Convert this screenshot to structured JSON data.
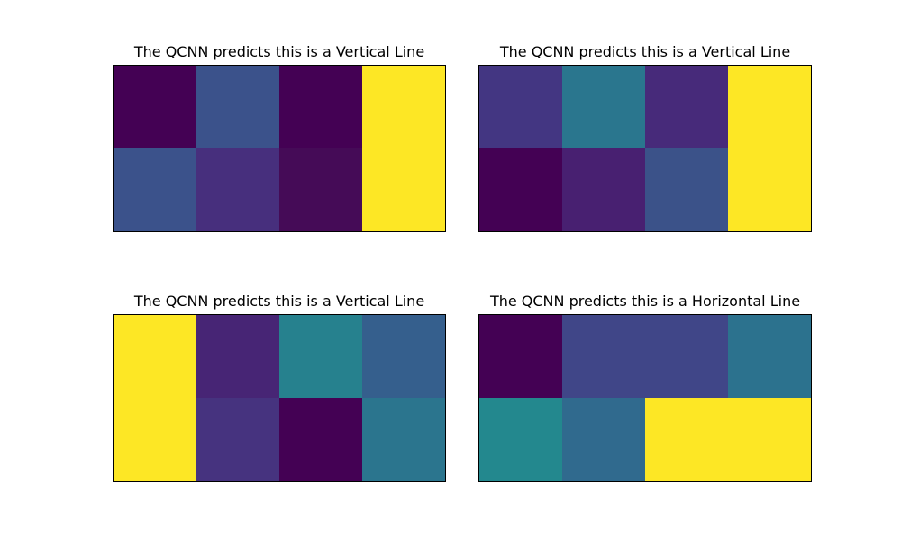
{
  "figure": {
    "colormap": "viridis",
    "background": "#ffffff"
  },
  "chart_data": [
    {
      "type": "heatmap",
      "title": "The QCNN predicts this is a Vertical Line",
      "rows": 2,
      "cols": 4,
      "colors": [
        [
          "#440154",
          "#3b528b",
          "#440154",
          "#fde725"
        ],
        [
          "#3b528b",
          "#472f7d",
          "#450b57",
          "#fde725"
        ]
      ],
      "grid": false,
      "axes_ticks": false
    },
    {
      "type": "heatmap",
      "title": "The QCNN predicts this is a Vertical Line",
      "rows": 2,
      "cols": 4,
      "colors": [
        [
          "#433682",
          "#2a768e",
          "#472a7a",
          "#fde725"
        ],
        [
          "#440154",
          "#482071",
          "#3b5289",
          "#fde725"
        ]
      ],
      "grid": false,
      "axes_ticks": false
    },
    {
      "type": "heatmap",
      "title": "The QCNN predicts this is a Vertical Line",
      "rows": 2,
      "cols": 4,
      "colors": [
        [
          "#fde725",
          "#472575",
          "#26818e",
          "#355f8d"
        ],
        [
          "#fde725",
          "#46337f",
          "#440154",
          "#2b758e"
        ]
      ],
      "grid": false,
      "axes_ticks": false
    },
    {
      "type": "heatmap",
      "title": "The QCNN predicts this is a Horizontal Line",
      "rows": 2,
      "cols": 4,
      "colors": [
        [
          "#440154",
          "#404688",
          "#404688",
          "#2c728e"
        ],
        [
          "#23888e",
          "#306a8e",
          "#fde725",
          "#fde725"
        ]
      ],
      "grid": false,
      "axes_ticks": false
    }
  ]
}
